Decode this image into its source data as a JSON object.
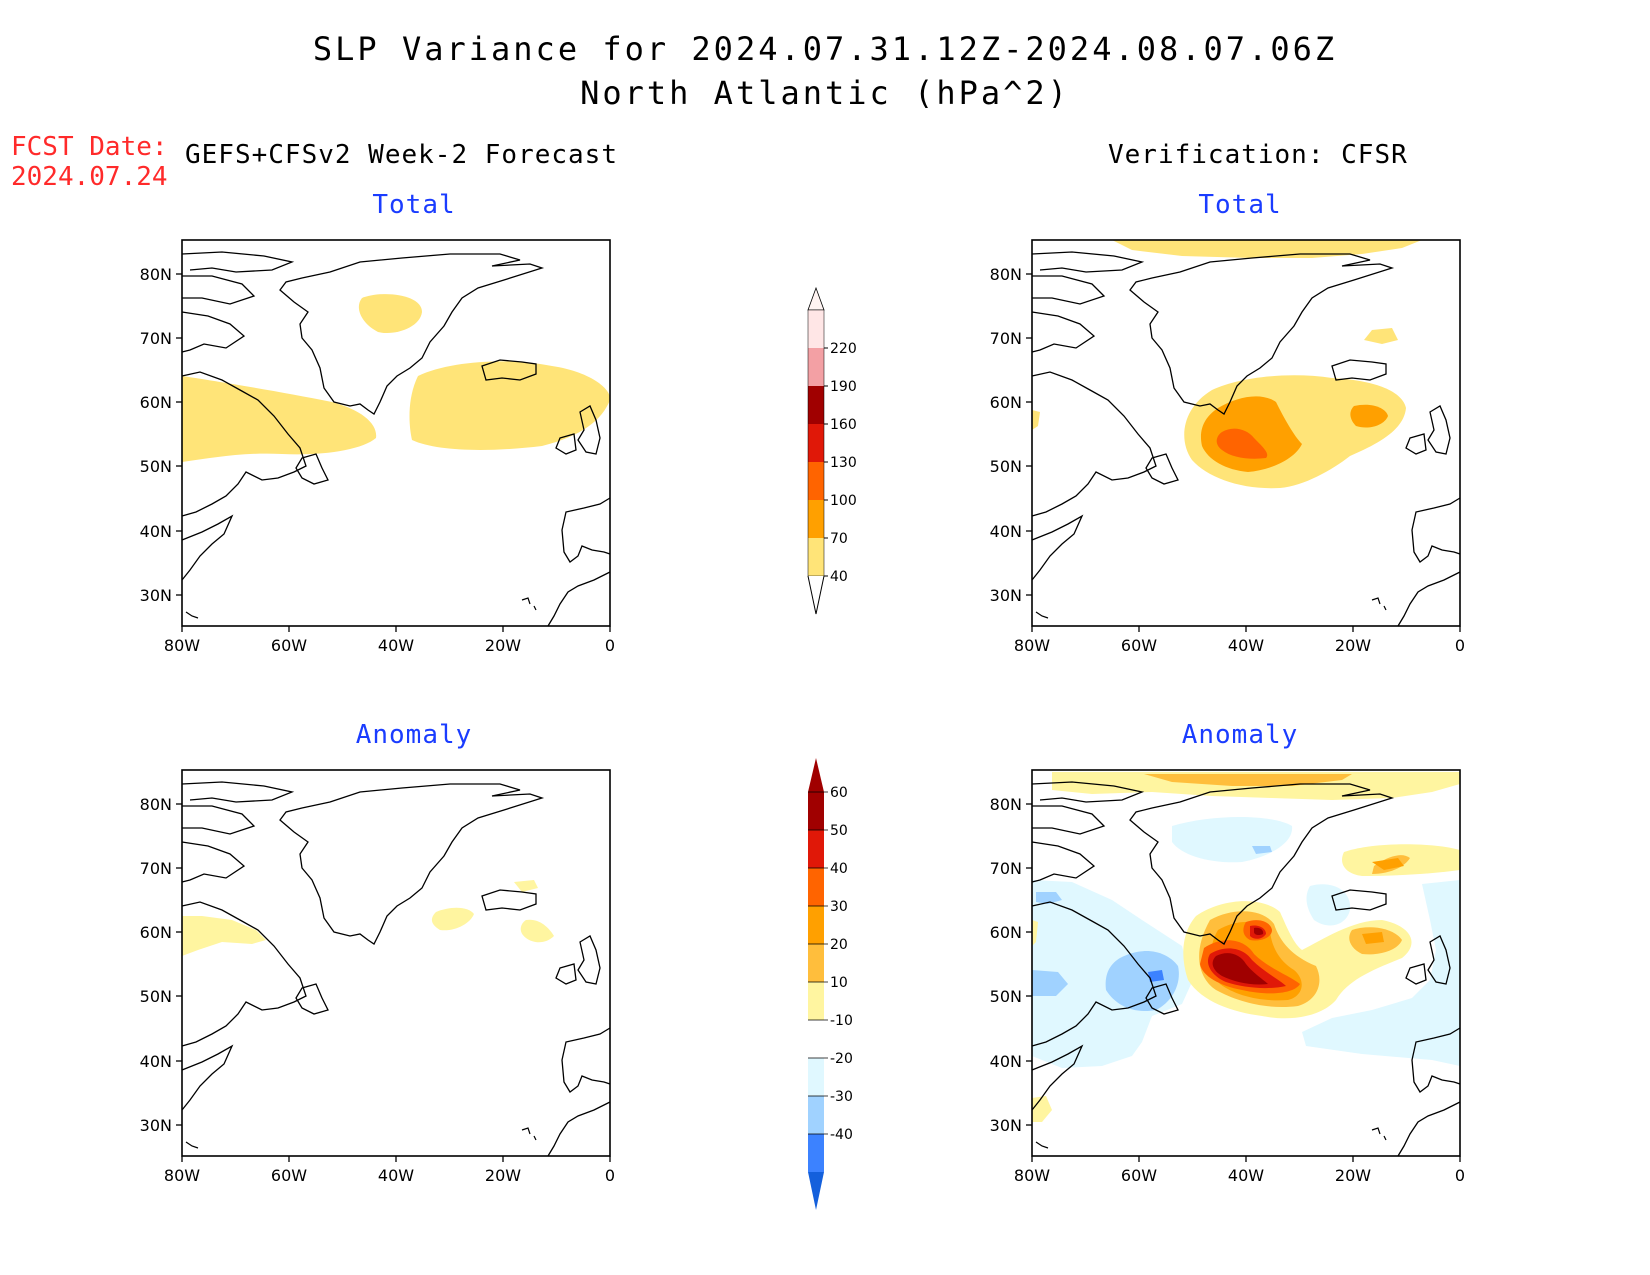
{
  "title_line1": "SLP Variance for 2024.07.31.12Z-2024.08.07.06Z",
  "title_line2": "North Atlantic (hPa^2)",
  "fcst_label": "FCST Date:",
  "fcst_date": "2024.07.24",
  "left_header": "GEFS+CFSv2 Week-2 Forecast",
  "right_header": "Verification: CFSR",
  "panel_titles": {
    "total": "Total",
    "anomaly": "Anomaly"
  },
  "axes": {
    "lat_labels": [
      "80N",
      "70N",
      "60N",
      "50N",
      "40N",
      "30N"
    ],
    "lon_labels": [
      "80W",
      "60W",
      "40W",
      "20W",
      "0"
    ]
  },
  "colorbar_total": {
    "labels": [
      "220",
      "190",
      "160",
      "130",
      "100",
      "70",
      "40"
    ],
    "colors": [
      "#ffe6e6",
      "#f3a0a4",
      "#a00000",
      "#e01808",
      "#ff6400",
      "#ffa000",
      "#ffe478"
    ]
  },
  "colorbar_anomaly": {
    "labels": [
      "60",
      "50",
      "40",
      "30",
      "20",
      "10",
      "-10",
      "-20",
      "-30",
      "-40"
    ],
    "colors": [
      "#a00000",
      "#e01808",
      "#ff6400",
      "#ffa000",
      "#ffbe3c",
      "#fff5a0",
      "#ffffff",
      "#e0f8ff",
      "#a0d2ff",
      "#3c82ff",
      "#1460dc"
    ]
  },
  "palette": {
    "coast": "#000000",
    "frame": "#000000"
  }
}
